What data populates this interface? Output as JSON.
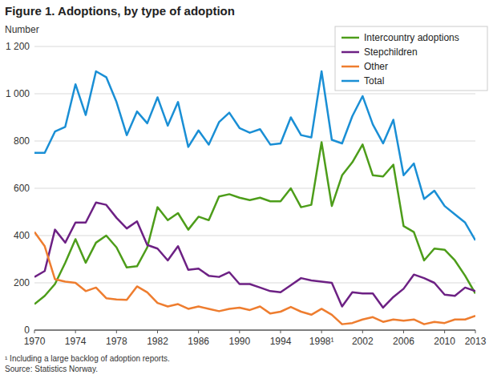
{
  "chart_data": {
    "type": "line",
    "title": "Figure 1. Adoptions, by type of adoption",
    "y_label": "Number",
    "notes": [
      "¹ Including a large backlog of adoption reports.",
      "Source: Statistics Norway."
    ],
    "x": [
      1970,
      1971,
      1972,
      1973,
      1974,
      1975,
      1976,
      1977,
      1978,
      1979,
      1980,
      1981,
      1982,
      1983,
      1984,
      1985,
      1986,
      1987,
      1988,
      1989,
      1990,
      1991,
      1992,
      1993,
      1994,
      1995,
      1996,
      1997,
      1998,
      1999,
      2000,
      2001,
      2002,
      2003,
      2004,
      2005,
      2006,
      2007,
      2008,
      2009,
      2010,
      2011,
      2012,
      2013
    ],
    "xlim": [
      1970,
      2013
    ],
    "xticks": [
      1970,
      1974,
      1978,
      1982,
      1986,
      1990,
      1994,
      {
        "value": 1998,
        "label": "1998¹"
      },
      2002,
      2006,
      2010,
      2013
    ],
    "ylim": [
      0,
      1200
    ],
    "yticks": [
      0,
      200,
      400,
      600,
      800,
      {
        "value": 1000,
        "label": "1 000"
      },
      {
        "value": 1200,
        "label": "1 200"
      }
    ],
    "grid": true,
    "legend": "top-right",
    "series": [
      {
        "name": "Intercountry adoptions",
        "color": "#4d9d1a",
        "values": [
          110,
          145,
          195,
          285,
          385,
          285,
          370,
          400,
          350,
          265,
          270,
          350,
          520,
          465,
          495,
          425,
          480,
          465,
          565,
          575,
          560,
          550,
          560,
          545,
          545,
          600,
          520,
          530,
          795,
          525,
          655,
          710,
          785,
          655,
          650,
          700,
          440,
          415,
          295,
          345,
          340,
          295,
          230,
          155
        ]
      },
      {
        "name": "Stepchildren",
        "color": "#6d2184",
        "values": [
          225,
          250,
          425,
          370,
          455,
          455,
          540,
          530,
          475,
          430,
          460,
          360,
          345,
          295,
          355,
          255,
          260,
          230,
          225,
          245,
          195,
          195,
          180,
          165,
          160,
          190,
          220,
          210,
          205,
          200,
          100,
          160,
          155,
          155,
          95,
          140,
          175,
          235,
          220,
          200,
          150,
          145,
          180,
          165
        ]
      },
      {
        "name": "Other",
        "color": "#ee7d2f",
        "values": [
          415,
          355,
          215,
          205,
          200,
          165,
          180,
          135,
          130,
          128,
          185,
          160,
          115,
          100,
          110,
          90,
          100,
          90,
          80,
          90,
          95,
          85,
          100,
          70,
          78,
          98,
          78,
          65,
          90,
          65,
          25,
          30,
          45,
          55,
          35,
          45,
          40,
          45,
          25,
          35,
          30,
          45,
          45,
          60
        ]
      },
      {
        "name": "Total",
        "color": "#1a8fd5",
        "values": [
          750,
          750,
          840,
          860,
          1040,
          910,
          1095,
          1070,
          965,
          825,
          925,
          875,
          985,
          865,
          965,
          775,
          845,
          785,
          880,
          920,
          855,
          835,
          850,
          785,
          790,
          900,
          825,
          815,
          1095,
          805,
          790,
          905,
          990,
          870,
          790,
          890,
          655,
          705,
          555,
          590,
          525,
          490,
          455,
          380
        ]
      }
    ]
  }
}
